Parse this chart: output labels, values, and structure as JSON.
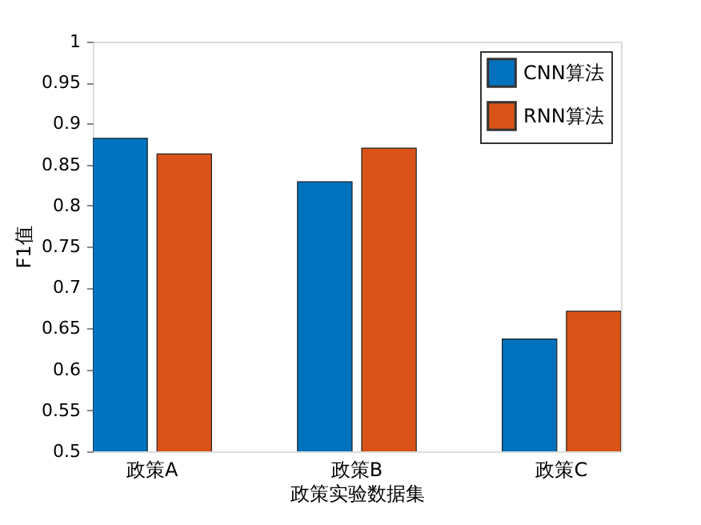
{
  "chart_data": {
    "type": "bar",
    "xlabel": "政策实验数据集",
    "ylabel": "F1值",
    "categories": [
      "政策A",
      "政策B",
      "政策C"
    ],
    "series": [
      {
        "name": "CNN算法",
        "color": "#0072bd",
        "values": [
          0.882,
          0.829,
          0.637
        ]
      },
      {
        "name": "RNN算法",
        "color": "#d95319",
        "values": [
          0.863,
          0.87,
          0.671
        ]
      }
    ],
    "ylim": [
      0.5,
      1
    ],
    "yticks": [
      0.5,
      0.55,
      0.6,
      0.65,
      0.7,
      0.75,
      0.8,
      0.85,
      0.9,
      0.95,
      1
    ],
    "grid": false,
    "legend": "top right"
  }
}
